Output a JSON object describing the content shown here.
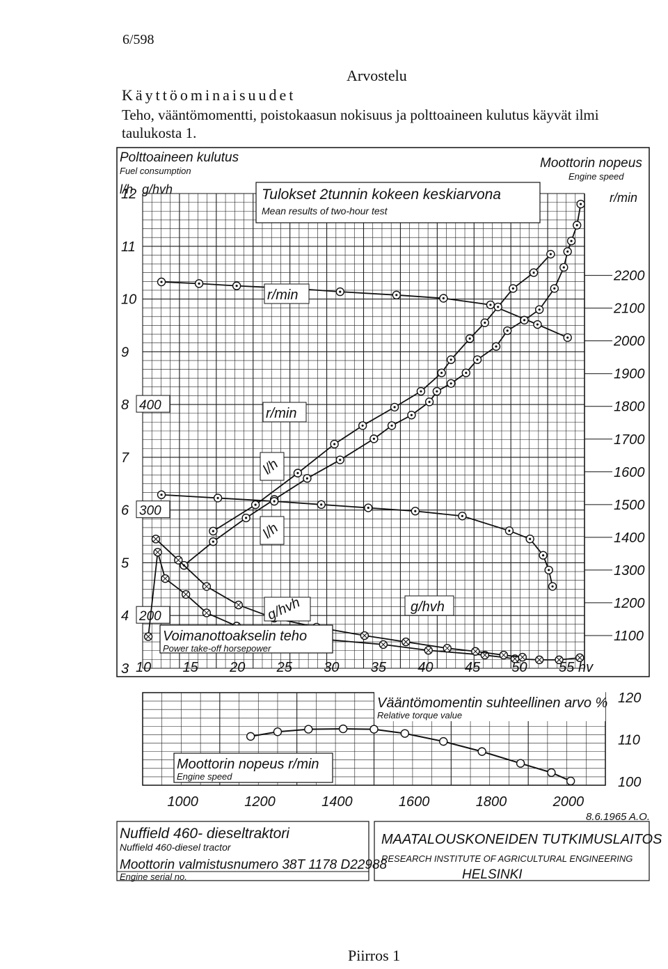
{
  "page": {
    "page_number": "6/598",
    "heading": "Arvostelu",
    "section_title": "Käyttöominaisuudet",
    "body_text": "Teho, vääntömomentti, poistokaasun nokisuus ja polttoaineen kulutus käyvät ilmi taulukosta 1.",
    "caption": "Piirros 1"
  },
  "chart_data": [
    {
      "type": "line",
      "title": "Tulokset 2tunnin kokeen keskiarvona",
      "subtitle": "Mean results of two-hour test",
      "xlabel": "Voimanottoakselin teho",
      "xlabel_en": "Power take-off horsepower",
      "x_unit": "hv",
      "xlim": [
        10,
        57
      ],
      "x_ticks": [
        "10",
        "15",
        "20",
        "25",
        "30",
        "35",
        "40",
        "45",
        "50",
        "55"
      ],
      "left_axis_title": "Polttoaineen kulutus",
      "left_axis_title_en": "Fuel consumption",
      "left_units": [
        "l/h",
        "g/hvh"
      ],
      "left_lh_ticks": [
        "3",
        "4",
        "5",
        "6",
        "7",
        "8",
        "9",
        "10",
        "11",
        "12"
      ],
      "left_lh_lim": [
        3,
        12
      ],
      "left_ghvh_ticks": [
        "200",
        "300",
        "400"
      ],
      "right_axis_title": "Moottorin nopeus",
      "right_axis_title_en": "Engine speed",
      "right_unit": "r/min",
      "right_ticks": [
        "1100",
        "1200",
        "1300",
        "1400",
        "1500",
        "1600",
        "1700",
        "1800",
        "1900",
        "2000",
        "2100",
        "2200"
      ],
      "right_lim": [
        1000,
        2450
      ],
      "grid": true,
      "series": [
        {
          "name": "r/min",
          "axis": "right",
          "points": [
            [
              12,
              2180
            ],
            [
              16,
              2175
            ],
            [
              20,
              2168
            ],
            [
              26,
              2160
            ],
            [
              31,
              2150
            ],
            [
              37,
              2140
            ],
            [
              42,
              2130
            ],
            [
              47,
              2110
            ],
            [
              52,
              2050
            ],
            [
              55.2,
              2010
            ]
          ]
        },
        {
          "name": "l/h",
          "axis": "left",
          "points": [
            [
              14.4,
              4.95
            ],
            [
              17.5,
              5.4
            ],
            [
              21,
              5.85
            ],
            [
              24,
              6.2
            ],
            [
              27.5,
              6.6
            ],
            [
              31,
              6.95
            ],
            [
              34.6,
              7.35
            ],
            [
              36.5,
              7.6
            ],
            [
              38.6,
              7.8
            ],
            [
              40.5,
              8.05
            ],
            [
              41.3,
              8.25
            ],
            [
              42.8,
              8.4
            ],
            [
              44.4,
              8.6
            ],
            [
              45.6,
              8.85
            ],
            [
              47.6,
              9.1
            ],
            [
              48.8,
              9.4
            ],
            [
              50.6,
              9.6
            ],
            [
              52.2,
              9.8
            ],
            [
              53.8,
              10.2
            ],
            [
              54.8,
              10.6
            ],
            [
              55.2,
              10.9
            ],
            [
              55.6,
              11.1
            ],
            [
              56.2,
              11.4
            ],
            [
              56.6,
              11.8
            ]
          ]
        },
        {
          "name": "g/hvh",
          "axis": "left",
          "points": [
            [
              10.6,
              3.6
            ],
            [
              11.6,
              5.2
            ],
            [
              12.4,
              4.7
            ],
            [
              14.6,
              4.4
            ],
            [
              16.8,
              4.05
            ],
            [
              20,
              3.8
            ],
            [
              24.5,
              3.65
            ],
            [
              29.8,
              3.54
            ],
            [
              35.6,
              3.45
            ],
            [
              40.4,
              3.34
            ],
            [
              46.4,
              3.25
            ],
            [
              49.6,
              3.18
            ],
            [
              52.2,
              3.16
            ],
            [
              54.3,
              3.16
            ],
            [
              56.5,
              3.2
            ]
          ]
        },
        {
          "name": "r/min",
          "axis": "right",
          "points": [
            [
              12,
              1530
            ],
            [
              18,
              1520
            ],
            [
              24,
              1510
            ],
            [
              29,
              1500
            ],
            [
              34,
              1490
            ],
            [
              39,
              1480
            ],
            [
              44,
              1465
            ],
            [
              49,
              1420
            ],
            [
              51.2,
              1395
            ],
            [
              52.6,
              1345
            ],
            [
              53.2,
              1300
            ],
            [
              53.6,
              1250
            ]
          ]
        },
        {
          "name": "l/h",
          "axis": "left",
          "points": [
            [
              17.5,
              5.6
            ],
            [
              22,
              6.1
            ],
            [
              26.5,
              6.7
            ],
            [
              30.4,
              7.25
            ],
            [
              33.4,
              7.6
            ],
            [
              36.8,
              7.95
            ],
            [
              39.6,
              8.25
            ],
            [
              41.8,
              8.6
            ],
            [
              42.8,
              8.85
            ],
            [
              44.8,
              9.25
            ],
            [
              46.4,
              9.55
            ],
            [
              47.8,
              9.85
            ],
            [
              49.4,
              10.2
            ],
            [
              51.6,
              10.5
            ],
            [
              53.4,
              10.85
            ]
          ]
        },
        {
          "name": "g/hvh",
          "axis": "left",
          "points": [
            [
              11.4,
              5.45
            ],
            [
              13.8,
              5.05
            ],
            [
              16.8,
              4.55
            ],
            [
              20.2,
              4.2
            ],
            [
              24,
              3.95
            ],
            [
              28.5,
              3.78
            ],
            [
              33.6,
              3.62
            ],
            [
              38,
              3.5
            ],
            [
              42.4,
              3.38
            ],
            [
              45.4,
              3.32
            ],
            [
              48.4,
              3.25
            ],
            [
              50.4,
              3.21
            ]
          ]
        }
      ],
      "curve_labels": [
        "r/min",
        "r/min",
        "l/h",
        "l/h",
        "g/hvh",
        "g/hvh"
      ]
    },
    {
      "type": "line",
      "title": "Vääntömomentin suhteellinen arvo %",
      "subtitle": "Relative torque value",
      "xlabel": "Moottorin nopeus r/min",
      "xlabel_en": "Engine speed",
      "xlim": [
        900,
        2100
      ],
      "x_ticks": [
        "1000",
        "1200",
        "1400",
        "1600",
        "1800",
        "2000"
      ],
      "y_ticks": [
        "100",
        "110",
        "120"
      ],
      "ylim": [
        99,
        121
      ],
      "grid": true,
      "series": [
        {
          "name": "Vääntömomentin suhteellinen arvo %",
          "points": [
            [
              1180,
              110.6
            ],
            [
              1250,
              111.7
            ],
            [
              1330,
              112.3
            ],
            [
              1420,
              112.4
            ],
            [
              1500,
              112.3
            ],
            [
              1580,
              111.3
            ],
            [
              1680,
              109.4
            ],
            [
              1780,
              107.0
            ],
            [
              1880,
              104.2
            ],
            [
              1960,
              102.0
            ],
            [
              2010,
              100.0
            ]
          ]
        }
      ]
    }
  ],
  "date": "8.6.1965 A.O.",
  "footer": {
    "tractor_fi": "Nuffield 460- dieseltraktori",
    "tractor_en": "Nuffield 460-diesel tractor",
    "serial_fi": "Moottorin valmistusnumero 38T 1178 D22988",
    "serial_en": "Engine serial no.",
    "institute_fi": "MAATALOUSKONEIDEN TUTKIMUSLAITOS",
    "institute_en": "RESEARCH INSTITUTE OF AGRICULTURAL ENGINEERING",
    "city": "HELSINKI"
  },
  "style": {
    "ink": "#111111",
    "grid": "#1a1a1a",
    "paper": "#ffffff"
  }
}
